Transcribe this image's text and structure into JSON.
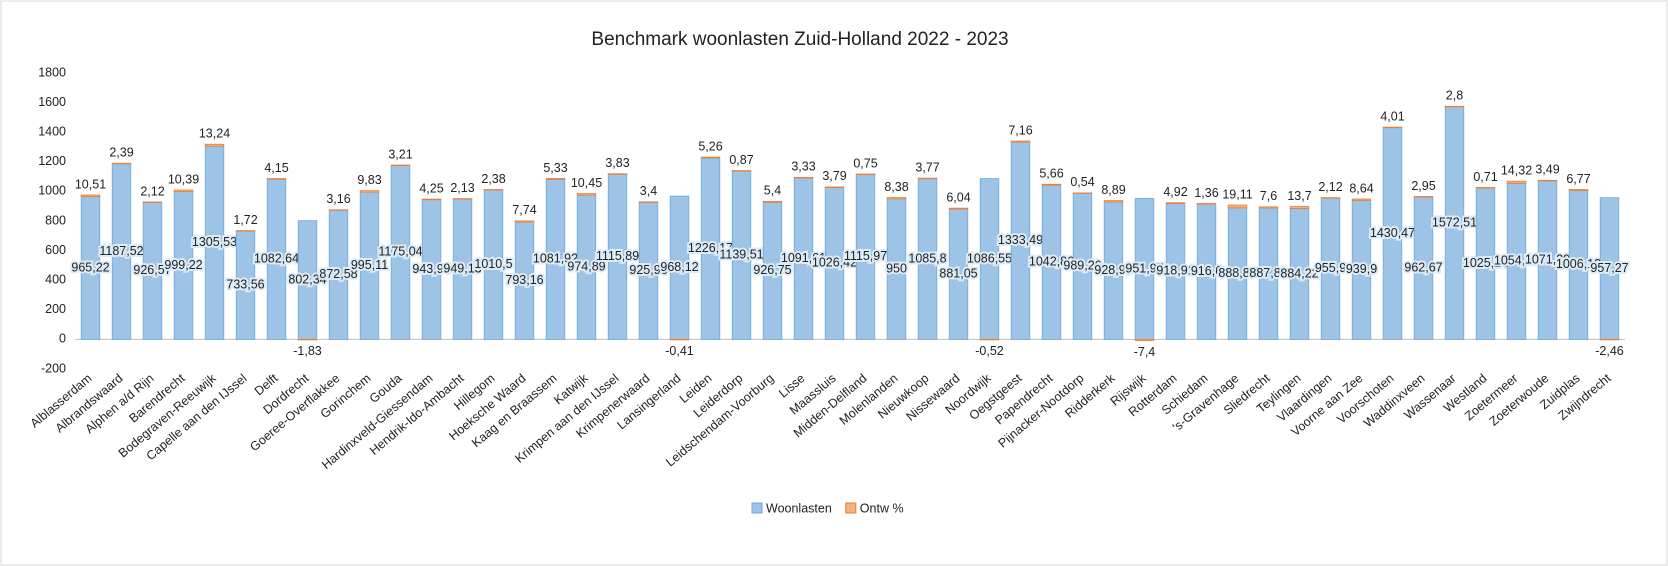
{
  "chart_data": {
    "type": "stacked_bar",
    "title": "Benchmark woonlasten Zuid-Holland 2022 - 2023",
    "categories": [
      "Alblasserdam",
      "Albrandswaard",
      "Alphen a/d Rijn",
      "Barendrecht",
      "Bodegraven-Reeuwijk",
      "Capelle aan den IJssel",
      "Delft",
      "Dordrecht",
      "Goeree-Overflakkee",
      "Gorinchem",
      "Gouda",
      "Hardinxveld-Giessendam",
      "Hendrik-Ido-Ambacht",
      "Hillegom",
      "Hoeksche Waard",
      "Kaag en Braassem",
      "Katwijk",
      "Krimpen aan den IJssel",
      "Krimpenerwaard",
      "Lansingerland",
      "Leiden",
      "Leiderdorp",
      "Leidschendam-Voorburg",
      "Lisse",
      "Maassluis",
      "Midden-Delfland",
      "Molenlanden",
      "Nieuwkoop",
      "Nissewaard",
      "Noordwijk",
      "Oegstgeest",
      "Papendrecht",
      "Pijnacker-Nootdorp",
      "Ridderkerk",
      "Rijswijk",
      "Rotterdam",
      "Schiedam",
      "'s-Gravenhage",
      "Sliedrecht",
      "Teylingen",
      "Vlaardingen",
      "Voorne aan Zee",
      "Voorschoten",
      "Waddinxveen",
      "Wassenaar",
      "Westland",
      "Zoetermeer",
      "Zoeterwoude",
      "Zuidplas",
      "Zwijndrecht"
    ],
    "series": [
      {
        "name": "Woonlasten",
        "color": "#9dc3e6",
        "values": [
          965.22,
          1187.52,
          926.57,
          999.22,
          1305.53,
          733.56,
          1082.64,
          802.34,
          872.58,
          995.11,
          1175.04,
          943.94,
          949.13,
          1010.5,
          793.16,
          1081.92,
          974.89,
          1115.89,
          925.96,
          968.12,
          1226.17,
          1139.51,
          926.75,
          1091.61,
          1026.42,
          1115.97,
          950,
          1085.8,
          881.05,
          1086.55,
          1333.49,
          1042.86,
          989.26,
          928.95,
          951.97,
          918.91,
          916.6,
          888.88,
          887.88,
          884.22,
          955.9,
          939.9,
          1430.47,
          962.67,
          1572.51,
          1025.24,
          1054.77,
          1071.39,
          1006.13,
          957.27
        ],
        "value_labels": [
          "965,22",
          "1187,52",
          "926,57",
          "999,22",
          "1305,53",
          "733,56",
          "1082,64",
          "802,34",
          "872,58",
          "995,11",
          "1175,04",
          "943,94",
          "949,13",
          "1010,5",
          "793,16",
          "1081,92",
          "974,89",
          "1115,89",
          "925,96",
          "968,12",
          "1226,17",
          "1139,51",
          "926,75",
          "1091,61",
          "1026,42",
          "1115,97",
          "950",
          "1085,8",
          "881,05",
          "1086,55",
          "1333,49",
          "1042,86",
          "989,26",
          "928,95",
          "951,97",
          "918,91",
          "916,6",
          "888,88",
          "887,88",
          "884,22",
          "955,9",
          "939,9",
          "1430,47",
          "962,67",
          "1572,51",
          "1025,24",
          "1054,77",
          "1071,39",
          "1006,13",
          "957,27"
        ]
      },
      {
        "name": "Ontw %",
        "color": "#f4b183",
        "values": [
          10.51,
          2.39,
          2.12,
          10.39,
          13.24,
          1.72,
          4.15,
          -1.83,
          3.16,
          9.83,
          3.21,
          4.25,
          2.13,
          2.38,
          7.74,
          5.33,
          10.45,
          3.83,
          3.4,
          -0.41,
          5.26,
          0.87,
          5.4,
          3.33,
          3.79,
          0.75,
          8.38,
          3.77,
          6.04,
          -0.52,
          7.16,
          5.66,
          0.54,
          8.89,
          -7.4,
          4.92,
          1.36,
          19.11,
          7.6,
          13.7,
          2.12,
          8.64,
          4.01,
          2.95,
          2.8,
          0.71,
          14.32,
          3.49,
          6.77,
          -2.46
        ],
        "value_labels": [
          "10,51",
          "2,39",
          "2,12",
          "10,39",
          "13,24",
          "1,72",
          "4,15",
          "-1,83",
          "3,16",
          "9,83",
          "3,21",
          "4,25",
          "2,13",
          "2,38",
          "7,74",
          "5,33",
          "10,45",
          "3,83",
          "3,4",
          "-0,41",
          "5,26",
          "0,87",
          "5,4",
          "3,33",
          "3,79",
          "0,75",
          "8,38",
          "3,77",
          "6,04",
          "-0,52",
          "7,16",
          "5,66",
          "0,54",
          "8,89",
          "-7,4",
          "4,92",
          "1,36",
          "19,11",
          "7,6",
          "13,7",
          "2,12",
          "8,64",
          "4,01",
          "2,95",
          "2,8",
          "0,71",
          "14,32",
          "3,49",
          "6,77",
          "-2,46"
        ]
      }
    ],
    "ylim": [
      -200,
      1800
    ],
    "yticks": [
      -200,
      0,
      200,
      400,
      600,
      800,
      1000,
      1200,
      1400,
      1600,
      1800
    ],
    "grid": false,
    "legend": "bottom"
  }
}
